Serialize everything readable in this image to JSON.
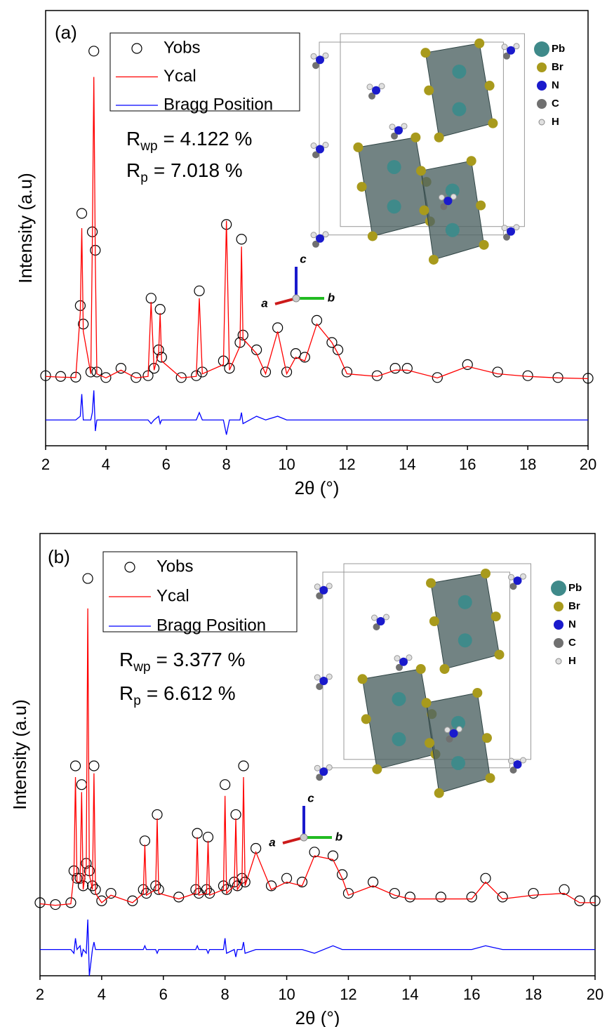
{
  "chart_data": [
    {
      "type": "rietveld",
      "panel_label": "(a)",
      "x_label": "2θ (°)",
      "y_label": "Intensity (a.u)",
      "x": [
        2.0,
        2.5,
        3.0,
        3.15,
        3.2,
        3.25,
        3.5,
        3.55,
        3.6,
        3.65,
        3.7,
        4.0,
        4.5,
        5.0,
        5.4,
        5.5,
        5.6,
        5.75,
        5.8,
        5.85,
        6.5,
        7.0,
        7.1,
        7.2,
        7.9,
        8.0,
        8.1,
        8.45,
        8.5,
        8.55,
        9.0,
        9.3,
        9.7,
        10.0,
        10.3,
        10.6,
        11.0,
        11.5,
        11.7,
        12.0,
        13.0,
        13.6,
        14.0,
        15.0,
        16.0,
        17.0,
        18.0,
        19.0,
        20.0
      ],
      "series": [
        {
          "name": "Yobs",
          "color": "#000000",
          "marker": "circle",
          "values": [
            1,
            0.8,
            0.6,
            20,
            45,
            15,
            2,
            40,
            89,
            35,
            2,
            0.5,
            3,
            0.5,
            1,
            22,
            3,
            8,
            19,
            6,
            0.5,
            1,
            24,
            2,
            5,
            42,
            3,
            10,
            38,
            12,
            8,
            2,
            14,
            2,
            7,
            6,
            16,
            10,
            8,
            2,
            1,
            3,
            3,
            0.5,
            4,
            2,
            1,
            0.5,
            0.3
          ]
        },
        {
          "name": "Ycal",
          "color": "#ff0000",
          "marker": "line",
          "values": [
            0.8,
            0.6,
            0.5,
            18,
            41,
            13,
            1.5,
            37,
            82,
            32,
            1.5,
            0.4,
            2.5,
            0.4,
            0.8,
            21,
            2.5,
            7,
            18,
            5,
            0.4,
            0.8,
            22,
            1.5,
            4,
            43,
            2.5,
            9,
            36,
            11,
            7,
            1.5,
            13,
            1.5,
            6,
            5,
            15,
            10,
            7,
            1.5,
            0.8,
            2.5,
            2.5,
            0.4,
            3.5,
            1.5,
            0.8,
            0.4,
            0.2
          ]
        },
        {
          "name": "Bragg Position",
          "color": "#0000ff",
          "marker": "line",
          "values": [
            -11,
            -11,
            -11,
            -10,
            -4,
            -11,
            -11,
            -9,
            -3,
            -14,
            -11,
            -11,
            -11,
            -11,
            -11,
            -12,
            -11,
            -10,
            -12,
            -11,
            -11,
            -11,
            -9,
            -11,
            -11,
            -15,
            -11,
            -11,
            -9,
            -12,
            -10,
            -11,
            -10,
            -11,
            -11,
            -11,
            -11,
            -11,
            -11,
            -11,
            -11,
            -11,
            -11,
            -11,
            -11,
            -11,
            -11,
            -11,
            -11
          ]
        }
      ],
      "xlim": [
        2,
        20
      ],
      "xticks": [
        2,
        4,
        6,
        8,
        10,
        12,
        14,
        16,
        18,
        20
      ],
      "ylim": [
        -18,
        100
      ],
      "annotations": [
        {
          "symbol": "R",
          "subscript": "wp",
          "text": "= 4.122 %"
        },
        {
          "symbol": "R",
          "subscript": "p",
          "text": "= 7.018 %"
        }
      ],
      "inset": {
        "elements": [
          {
            "label": "Pb",
            "color": "#3f8a8a"
          },
          {
            "label": "Br",
            "color": "#a89a1c"
          },
          {
            "label": "N",
            "color": "#1a1acc"
          },
          {
            "label": "C",
            "color": "#707070"
          },
          {
            "label": "H",
            "color": "#e0e0e0"
          }
        ],
        "axes": [
          {
            "label": "a",
            "color": "#cc1a1a"
          },
          {
            "label": "b",
            "color": "#22bb22"
          },
          {
            "label": "c",
            "color": "#1a1acc"
          }
        ]
      }
    },
    {
      "type": "rietveld",
      "panel_label": "(b)",
      "x_label": "2θ (°)",
      "y_label": "Intensity (a.u)",
      "x": [
        2.0,
        2.5,
        3.0,
        3.1,
        3.15,
        3.2,
        3.3,
        3.35,
        3.4,
        3.5,
        3.55,
        3.6,
        3.7,
        3.75,
        3.8,
        4.0,
        4.3,
        5.0,
        5.35,
        5.4,
        5.45,
        5.75,
        5.8,
        5.85,
        6.5,
        7.05,
        7.1,
        7.15,
        7.4,
        7.45,
        7.5,
        7.95,
        8.0,
        8.05,
        8.3,
        8.35,
        8.4,
        8.55,
        8.6,
        8.65,
        9.0,
        9.5,
        10.0,
        10.5,
        10.9,
        11.5,
        11.8,
        12.0,
        12.8,
        13.5,
        14.0,
        15.0,
        16.0,
        16.45,
        17.0,
        18.0,
        19.0,
        19.5,
        20.0
      ],
      "series": [
        {
          "name": "Yobs",
          "color": "#000000",
          "marker": "circle",
          "values": [
            1.5,
            1,
            1.5,
            10,
            38,
            8,
            8,
            33,
            6,
            12,
            88,
            10,
            6,
            38,
            5,
            2,
            4,
            2,
            5,
            18,
            4,
            6,
            25,
            5,
            3,
            5,
            20,
            4,
            5,
            19,
            4,
            6,
            33,
            5,
            7,
            25,
            6,
            8,
            38,
            7,
            16,
            6,
            8,
            7,
            15,
            14,
            9,
            4,
            7,
            4,
            3,
            3,
            3,
            8,
            3,
            4,
            5,
            2,
            2
          ]
        },
        {
          "name": "Ycal",
          "color": "#ff0000",
          "marker": "line",
          "values": [
            1.2,
            0.8,
            1.2,
            9,
            35,
            7,
            7,
            31,
            5,
            11,
            80,
            9,
            5,
            36,
            4,
            1.5,
            3.5,
            1.5,
            4,
            17,
            3.5,
            5,
            24,
            4,
            2.5,
            4,
            19,
            3.5,
            4,
            18,
            3.5,
            5,
            30,
            4,
            6,
            24,
            5,
            7,
            35,
            6,
            15,
            5,
            7,
            6,
            14,
            13,
            8,
            3.5,
            6,
            3.5,
            2.5,
            2.5,
            2.5,
            7,
            2.5,
            3.5,
            4,
            1.5,
            1.5
          ]
        },
        {
          "name": "Bragg Position",
          "color": "#0000ff",
          "marker": "line",
          "values": [
            -11,
            -11,
            -11,
            -12,
            -8,
            -11,
            -10,
            -13,
            -11,
            -12,
            -3,
            -18,
            -11,
            -9,
            -11,
            -11,
            -11,
            -11,
            -11,
            -10,
            -11,
            -11,
            -12,
            -11,
            -11,
            -11,
            -10,
            -11,
            -11,
            -12,
            -11,
            -11,
            -8,
            -12,
            -11,
            -13,
            -11,
            -11,
            -9,
            -12,
            -11,
            -11,
            -11,
            -11,
            -12,
            -10,
            -11,
            -11,
            -11,
            -11,
            -11,
            -11,
            -11,
            -10,
            -11,
            -11,
            -11,
            -11,
            -11
          ]
        }
      ],
      "xlim": [
        2,
        20
      ],
      "xticks": [
        2,
        4,
        6,
        8,
        10,
        12,
        14,
        16,
        18,
        20
      ],
      "ylim": [
        -18,
        100
      ],
      "annotations": [
        {
          "symbol": "R",
          "subscript": "wp",
          "text": "= 3.377 %"
        },
        {
          "symbol": "R",
          "subscript": "p",
          "text": "= 6.612 %"
        }
      ],
      "inset": {
        "elements": [
          {
            "label": "Pb",
            "color": "#3f8a8a"
          },
          {
            "label": "Br",
            "color": "#a89a1c"
          },
          {
            "label": "N",
            "color": "#1a1acc"
          },
          {
            "label": "C",
            "color": "#707070"
          },
          {
            "label": "H",
            "color": "#e0e0e0"
          }
        ],
        "axes": [
          {
            "label": "a",
            "color": "#cc1a1a"
          },
          {
            "label": "b",
            "color": "#22bb22"
          },
          {
            "label": "c",
            "color": "#1a1acc"
          }
        ]
      }
    }
  ]
}
